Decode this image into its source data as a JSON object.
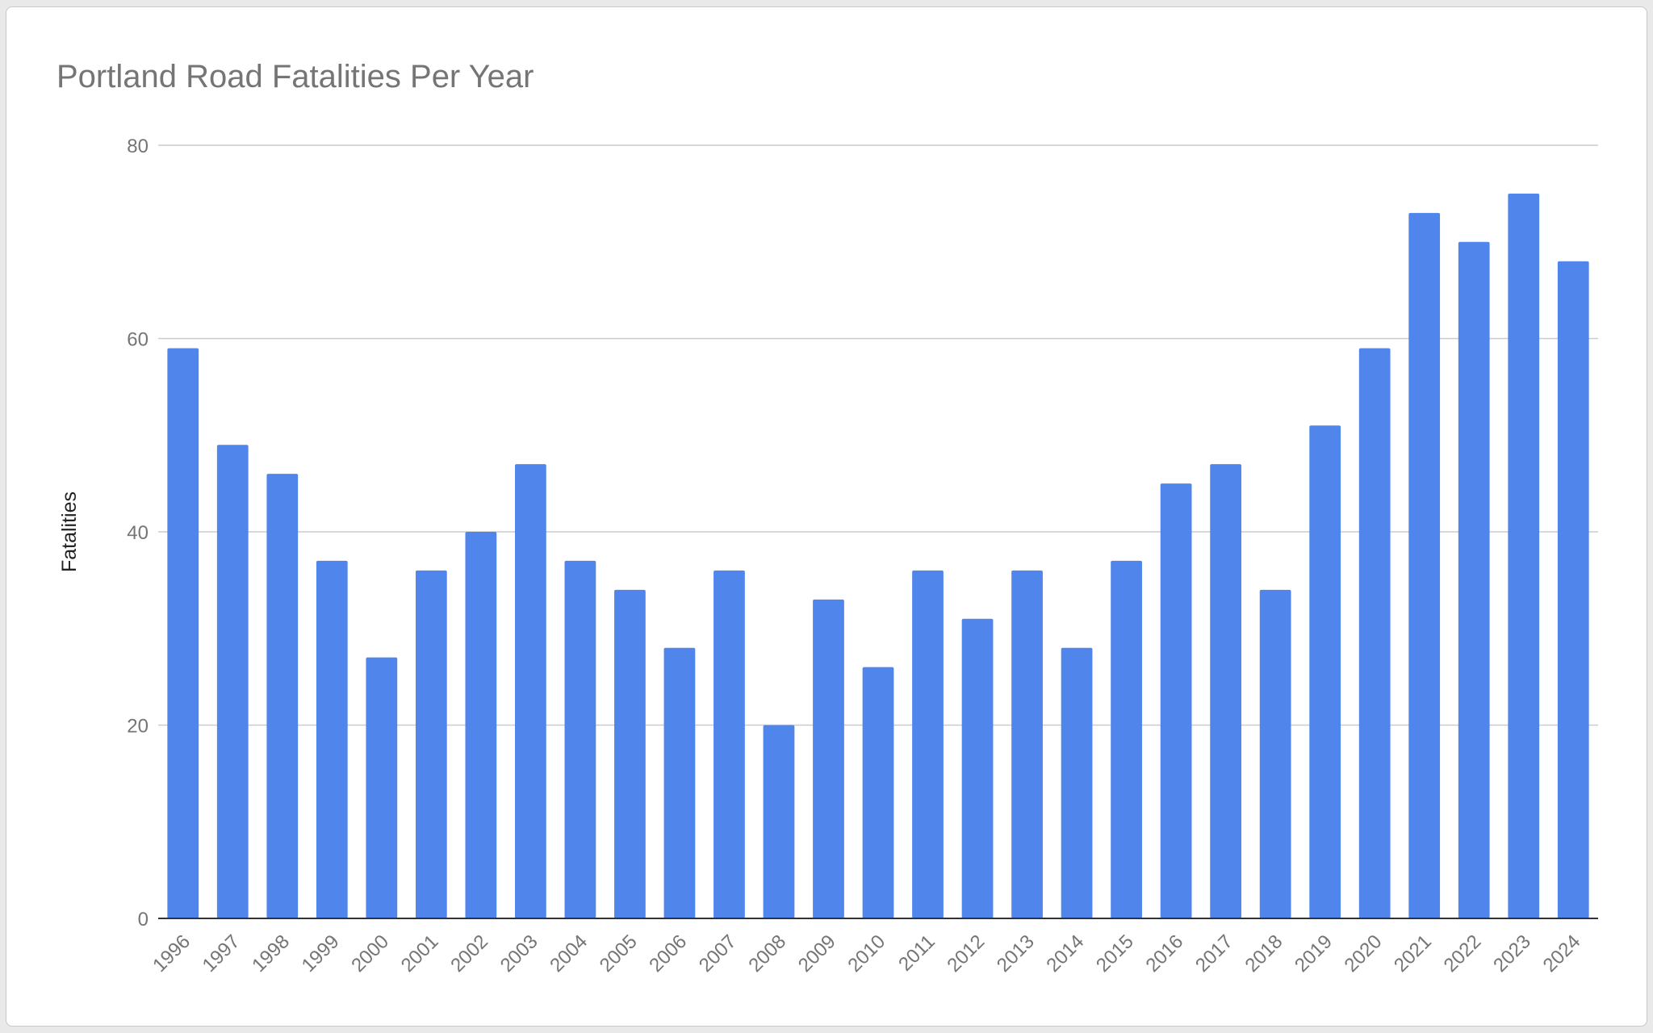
{
  "chart_data": {
    "type": "bar",
    "title": "Portland Road Fatalities Per Year",
    "xlabel": "",
    "ylabel": "Fatalities",
    "ylim": [
      0,
      80
    ],
    "yticks": [
      0,
      20,
      40,
      60,
      80
    ],
    "grid": true,
    "legend": "none",
    "bar_color": "#5086ec",
    "categories": [
      "1996",
      "1997",
      "1998",
      "1999",
      "2000",
      "2001",
      "2002",
      "2003",
      "2004",
      "2005",
      "2006",
      "2007",
      "2008",
      "2009",
      "2010",
      "2011",
      "2012",
      "2013",
      "2014",
      "2015",
      "2016",
      "2017",
      "2018",
      "2019",
      "2020",
      "2021",
      "2022",
      "2023",
      "2024"
    ],
    "values": [
      59,
      49,
      46,
      37,
      27,
      36,
      40,
      47,
      37,
      34,
      28,
      36,
      20,
      33,
      26,
      36,
      31,
      36,
      28,
      37,
      45,
      47,
      34,
      51,
      59,
      73,
      70,
      75,
      68
    ]
  }
}
